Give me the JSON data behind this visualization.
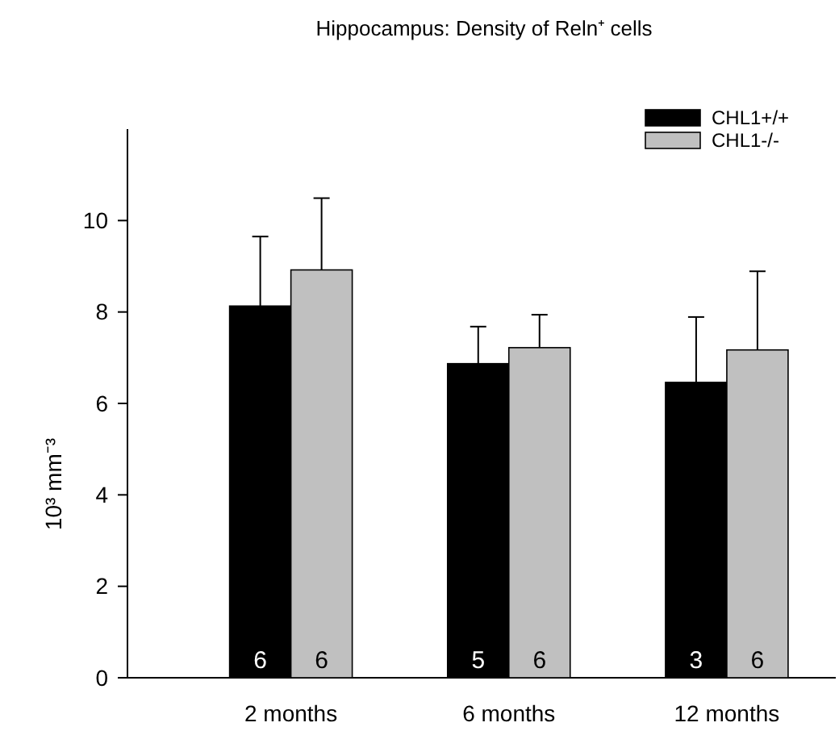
{
  "chart_data": {
    "type": "bar",
    "title": "Hippocampus: Density of Reln⁺ cells",
    "ylabel": "10³ mm⁻³",
    "categories": [
      "2 months",
      "6 months",
      "12 months"
    ],
    "series": [
      {
        "name": "CHL1+/+",
        "color": "#000000",
        "values": [
          8.13,
          6.87,
          6.46
        ],
        "errors": [
          [
            8.13,
            9.65
          ],
          [
            6.87,
            7.68
          ],
          [
            6.46,
            7.89
          ]
        ]
      },
      {
        "name": "CHL1-/-",
        "color": "#c0c0c0",
        "values": [
          8.92,
          7.22,
          7.17
        ],
        "errors": [
          [
            8.92,
            10.49
          ],
          [
            7.22,
            7.94
          ],
          [
            7.17,
            8.89
          ]
        ]
      }
    ],
    "annotations": [
      {
        "text": "6",
        "x": "2 months",
        "y": 0
      },
      {
        "text": "6",
        "x": "2 months",
        "y": 0
      },
      {
        "text": "5",
        "x": "6 months",
        "y": 0
      },
      {
        "text": "6",
        "x": "6 months",
        "y": 0
      },
      {
        "text": "3",
        "x": "12 months",
        "y": 0
      },
      {
        "text": "6",
        "x": "12 months",
        "y": 0
      }
    ],
    "ylim": [
      0,
      12
    ],
    "yticks": [
      0,
      2,
      4,
      6,
      8,
      10
    ],
    "legend": "top right",
    "grid": false
  }
}
